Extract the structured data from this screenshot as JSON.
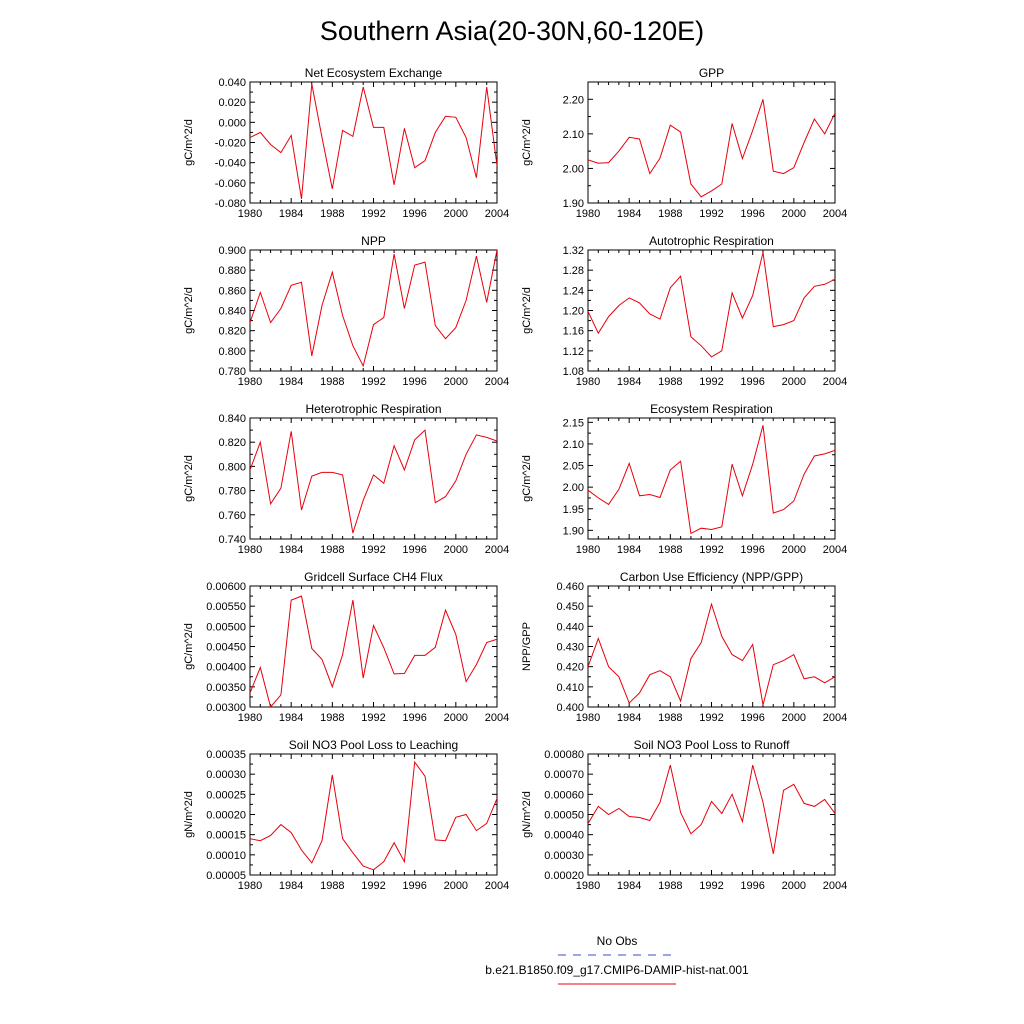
{
  "figure": {
    "title": "Southern Asia(20-30N,60-120E)",
    "line_color": "#e8000b",
    "obs_color": "#3a4bd6"
  },
  "legend": {
    "obs_label": "No Obs",
    "model_label": "b.e21.B1850.f09_g17.CMIP6-DAMIP-hist-nat.001"
  },
  "chart_data": [
    {
      "type": "line",
      "title": "Net Ecosystem Exchange",
      "ylabel": "gC/m^2/d",
      "xlim": [
        1980,
        2004
      ],
      "ylim": [
        -0.08,
        0.04
      ],
      "x_ticks": [
        1980,
        1984,
        1988,
        1992,
        1996,
        2000,
        2004
      ],
      "y_ticks": [
        -0.08,
        -0.06,
        -0.04,
        -0.02,
        0.0,
        0.02,
        0.04
      ],
      "y_tick_labels": [
        "-0.080",
        "-0.060",
        "-0.040",
        "-0.020",
        "0.000",
        "0.020",
        "0.040"
      ],
      "x": [
        1980,
        1981,
        1982,
        1983,
        1984,
        1985,
        1986,
        1987,
        1988,
        1989,
        1990,
        1991,
        1992,
        1993,
        1994,
        1995,
        1996,
        1997,
        1998,
        1999,
        2000,
        2001,
        2002,
        2003,
        2004
      ],
      "values": [
        -0.015,
        -0.01,
        -0.022,
        -0.03,
        -0.013,
        -0.076,
        0.038,
        -0.015,
        -0.066,
        -0.008,
        -0.014,
        0.035,
        -0.005,
        -0.005,
        -0.062,
        -0.006,
        -0.045,
        -0.038,
        -0.01,
        0.006,
        0.005,
        -0.015,
        -0.055,
        0.035,
        -0.043
      ]
    },
    {
      "type": "line",
      "title": "GPP",
      "ylabel": "gC/m^2/d",
      "xlim": [
        1980,
        2004
      ],
      "ylim": [
        1.9,
        2.25
      ],
      "x_ticks": [
        1980,
        1984,
        1988,
        1992,
        1996,
        2000,
        2004
      ],
      "y_ticks": [
        1.9,
        2.0,
        2.1,
        2.2
      ],
      "y_tick_labels": [
        "1.90",
        "2.00",
        "2.10",
        "2.20"
      ],
      "x": [
        1980,
        1981,
        1982,
        1983,
        1984,
        1985,
        1986,
        1987,
        1988,
        1989,
        1990,
        1991,
        1992,
        1993,
        1994,
        1995,
        1996,
        1997,
        1998,
        1999,
        2000,
        2001,
        2002,
        2003,
        2004
      ],
      "values": [
        2.025,
        2.015,
        2.017,
        2.05,
        2.09,
        2.085,
        1.985,
        2.03,
        2.125,
        2.105,
        1.955,
        1.918,
        1.935,
        1.955,
        2.13,
        2.028,
        2.11,
        2.2,
        1.992,
        1.985,
        2.002,
        2.075,
        2.143,
        2.1,
        2.16
      ]
    },
    {
      "type": "line",
      "title": "NPP",
      "ylabel": "gC/m^2/d",
      "xlim": [
        1980,
        2004
      ],
      "ylim": [
        0.78,
        0.9
      ],
      "x_ticks": [
        1980,
        1984,
        1988,
        1992,
        1996,
        2000,
        2004
      ],
      "y_ticks": [
        0.78,
        0.8,
        0.82,
        0.84,
        0.86,
        0.88,
        0.9
      ],
      "y_tick_labels": [
        "0.780",
        "0.800",
        "0.820",
        "0.840",
        "0.860",
        "0.880",
        "0.900"
      ],
      "x": [
        1980,
        1981,
        1982,
        1983,
        1984,
        1985,
        1986,
        1987,
        1988,
        1989,
        1990,
        1991,
        1992,
        1993,
        1994,
        1995,
        1996,
        1997,
        1998,
        1999,
        2000,
        2001,
        2002,
        2003,
        2004
      ],
      "values": [
        0.828,
        0.858,
        0.828,
        0.842,
        0.865,
        0.868,
        0.795,
        0.845,
        0.878,
        0.835,
        0.805,
        0.785,
        0.826,
        0.833,
        0.896,
        0.842,
        0.885,
        0.888,
        0.825,
        0.812,
        0.823,
        0.85,
        0.894,
        0.848,
        0.9
      ]
    },
    {
      "type": "line",
      "title": "Autotrophic Respiration",
      "ylabel": "gC/m^2/d",
      "xlim": [
        1980,
        2004
      ],
      "ylim": [
        1.08,
        1.32
      ],
      "x_ticks": [
        1980,
        1984,
        1988,
        1992,
        1996,
        2000,
        2004
      ],
      "y_ticks": [
        1.08,
        1.12,
        1.16,
        1.2,
        1.24,
        1.28,
        1.32
      ],
      "y_tick_labels": [
        "1.08",
        "1.12",
        "1.16",
        "1.20",
        "1.24",
        "1.28",
        "1.32"
      ],
      "x": [
        1980,
        1981,
        1982,
        1983,
        1984,
        1985,
        1986,
        1987,
        1988,
        1989,
        1990,
        1991,
        1992,
        1993,
        1994,
        1995,
        1996,
        1997,
        1998,
        1999,
        2000,
        2001,
        2002,
        2003,
        2004
      ],
      "values": [
        1.198,
        1.155,
        1.188,
        1.21,
        1.225,
        1.215,
        1.193,
        1.183,
        1.245,
        1.268,
        1.148,
        1.13,
        1.108,
        1.12,
        1.235,
        1.185,
        1.23,
        1.315,
        1.168,
        1.172,
        1.18,
        1.225,
        1.248,
        1.252,
        1.262
      ]
    },
    {
      "type": "line",
      "title": "Heterotrophic Respiration",
      "ylabel": "gC/m^2/d",
      "xlim": [
        1980,
        2004
      ],
      "ylim": [
        0.74,
        0.84
      ],
      "x_ticks": [
        1980,
        1984,
        1988,
        1992,
        1996,
        2000,
        2004
      ],
      "y_ticks": [
        0.74,
        0.76,
        0.78,
        0.8,
        0.82,
        0.84
      ],
      "y_tick_labels": [
        "0.740",
        "0.760",
        "0.780",
        "0.800",
        "0.820",
        "0.840"
      ],
      "x": [
        1980,
        1981,
        1982,
        1983,
        1984,
        1985,
        1986,
        1987,
        1988,
        1989,
        1990,
        1991,
        1992,
        1993,
        1994,
        1995,
        1996,
        1997,
        1998,
        1999,
        2000,
        2001,
        2002,
        2003,
        2004
      ],
      "values": [
        0.797,
        0.82,
        0.769,
        0.782,
        0.829,
        0.764,
        0.792,
        0.795,
        0.795,
        0.793,
        0.745,
        0.772,
        0.793,
        0.786,
        0.817,
        0.797,
        0.822,
        0.83,
        0.77,
        0.775,
        0.788,
        0.81,
        0.826,
        0.824,
        0.821
      ]
    },
    {
      "type": "line",
      "title": "Ecosystem Respiration",
      "ylabel": "gC/m^2/d",
      "xlim": [
        1980,
        2004
      ],
      "ylim": [
        1.88,
        2.16
      ],
      "x_ticks": [
        1980,
        1984,
        1988,
        1992,
        1996,
        2000,
        2004
      ],
      "y_ticks": [
        1.9,
        1.95,
        2.0,
        2.05,
        2.1,
        2.15
      ],
      "y_tick_labels": [
        "1.90",
        "1.95",
        "2.00",
        "2.05",
        "2.10",
        "2.15"
      ],
      "x": [
        1980,
        1981,
        1982,
        1983,
        1984,
        1985,
        1986,
        1987,
        1988,
        1989,
        1990,
        1991,
        1992,
        1993,
        1994,
        1995,
        1996,
        1997,
        1998,
        1999,
        2000,
        2001,
        2002,
        2003,
        2004
      ],
      "values": [
        1.993,
        1.975,
        1.96,
        1.995,
        2.055,
        1.98,
        1.983,
        1.976,
        2.04,
        2.06,
        1.893,
        1.905,
        1.902,
        1.908,
        2.053,
        1.98,
        2.053,
        2.143,
        1.94,
        1.948,
        1.968,
        2.03,
        2.072,
        2.077,
        2.085
      ]
    },
    {
      "type": "line",
      "title": "Gridcell Surface CH4 Flux",
      "ylabel": "gC/m^2/d",
      "xlim": [
        1980,
        2004
      ],
      "ylim": [
        0.003,
        0.006
      ],
      "x_ticks": [
        1980,
        1984,
        1988,
        1992,
        1996,
        2000,
        2004
      ],
      "y_ticks": [
        0.003,
        0.0035,
        0.004,
        0.0045,
        0.005,
        0.0055,
        0.006
      ],
      "y_tick_labels": [
        "0.00300",
        "0.00350",
        "0.00400",
        "0.00450",
        "0.00500",
        "0.00550",
        "0.00600"
      ],
      "x": [
        1980,
        1981,
        1982,
        1983,
        1984,
        1985,
        1986,
        1987,
        1988,
        1989,
        1990,
        1991,
        1992,
        1993,
        1994,
        1995,
        1996,
        1997,
        1998,
        1999,
        2000,
        2001,
        2002,
        2003,
        2004
      ],
      "values": [
        0.00335,
        0.00398,
        0.003,
        0.0033,
        0.00565,
        0.00575,
        0.00445,
        0.00418,
        0.0035,
        0.0043,
        0.00565,
        0.00372,
        0.00502,
        0.00447,
        0.00382,
        0.00383,
        0.00428,
        0.00428,
        0.00448,
        0.0054,
        0.0048,
        0.00363,
        0.00405,
        0.0046,
        0.00468
      ]
    },
    {
      "type": "line",
      "title": "Carbon Use Efficiency (NPP/GPP)",
      "ylabel": "NPP/GPP",
      "xlim": [
        1980,
        2004
      ],
      "ylim": [
        0.4,
        0.46
      ],
      "x_ticks": [
        1980,
        1984,
        1988,
        1992,
        1996,
        2000,
        2004
      ],
      "y_ticks": [
        0.4,
        0.41,
        0.42,
        0.43,
        0.44,
        0.45,
        0.46
      ],
      "y_tick_labels": [
        "0.400",
        "0.410",
        "0.420",
        "0.430",
        "0.440",
        "0.450",
        "0.460"
      ],
      "x": [
        1980,
        1981,
        1982,
        1983,
        1984,
        1985,
        1986,
        1987,
        1988,
        1989,
        1990,
        1991,
        1992,
        1993,
        1994,
        1995,
        1996,
        1997,
        1998,
        1999,
        2000,
        2001,
        2002,
        2003,
        2004
      ],
      "values": [
        0.42,
        0.434,
        0.42,
        0.415,
        0.402,
        0.407,
        0.416,
        0.418,
        0.415,
        0.403,
        0.424,
        0.432,
        0.451,
        0.435,
        0.426,
        0.423,
        0.431,
        0.401,
        0.421,
        0.423,
        0.426,
        0.414,
        0.415,
        0.412,
        0.415
      ]
    },
    {
      "type": "line",
      "title": "Soil NO3 Pool Loss to Leaching",
      "ylabel": "gN/m^2/d",
      "xlim": [
        1980,
        2004
      ],
      "ylim": [
        5e-05,
        0.00035
      ],
      "x_ticks": [
        1980,
        1984,
        1988,
        1992,
        1996,
        2000,
        2004
      ],
      "y_ticks": [
        5e-05,
        0.0001,
        0.00015,
        0.0002,
        0.00025,
        0.0003,
        0.00035
      ],
      "y_tick_labels": [
        "0.00005",
        "0.00010",
        "0.00015",
        "0.00020",
        "0.00025",
        "0.00030",
        "0.00035"
      ],
      "x": [
        1980,
        1981,
        1982,
        1983,
        1984,
        1985,
        1986,
        1987,
        1988,
        1989,
        1990,
        1991,
        1992,
        1993,
        1994,
        1995,
        1996,
        1997,
        1998,
        1999,
        2000,
        2001,
        2002,
        2003,
        2004
      ],
      "values": [
        0.00014,
        0.000135,
        0.000148,
        0.000175,
        0.000155,
        0.000112,
        8e-05,
        0.000135,
        0.000298,
        0.00014,
        0.000105,
        7.2e-05,
        6.3e-05,
        8.3e-05,
        0.00013,
        8.3e-05,
        0.00033,
        0.000295,
        0.000137,
        0.000135,
        0.000193,
        0.0002,
        0.00016,
        0.000178,
        0.00024
      ]
    },
    {
      "type": "line",
      "title": "Soil NO3 Pool Loss to Runoff",
      "ylabel": "gN/m^2/d",
      "xlim": [
        1980,
        2004
      ],
      "ylim": [
        0.0002,
        0.0008
      ],
      "x_ticks": [
        1980,
        1984,
        1988,
        1992,
        1996,
        2000,
        2004
      ],
      "y_ticks": [
        0.0002,
        0.0003,
        0.0004,
        0.0005,
        0.0006,
        0.0007,
        0.0008
      ],
      "y_tick_labels": [
        "0.00020",
        "0.00030",
        "0.00040",
        "0.00050",
        "0.00060",
        "0.00070",
        "0.00080"
      ],
      "x": [
        1980,
        1981,
        1982,
        1983,
        1984,
        1985,
        1986,
        1987,
        1988,
        1989,
        1990,
        1991,
        1992,
        1993,
        1994,
        1995,
        1996,
        1997,
        1998,
        1999,
        2000,
        2001,
        2002,
        2003,
        2004
      ],
      "values": [
        0.000455,
        0.00054,
        0.0005,
        0.00053,
        0.00049,
        0.000485,
        0.00047,
        0.00056,
        0.000745,
        0.00051,
        0.000405,
        0.00045,
        0.000565,
        0.000505,
        0.0006,
        0.000465,
        0.000745,
        0.00056,
        0.000305,
        0.00062,
        0.00065,
        0.000555,
        0.00054,
        0.000575,
        0.000505
      ]
    }
  ]
}
